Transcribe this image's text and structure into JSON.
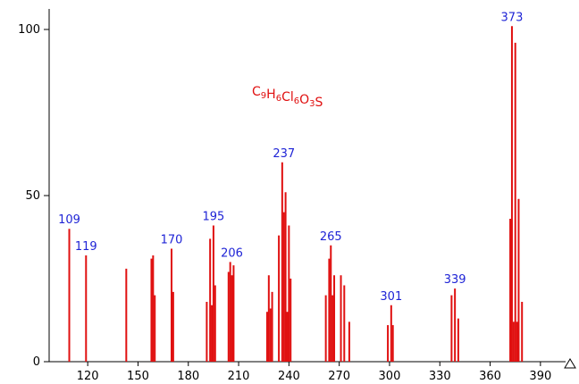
{
  "chart_data": {
    "type": "bar",
    "title": "",
    "annotation": "C9H6Cl6O3S",
    "xlabel": "",
    "ylabel": "",
    "xlim": [
      97,
      405
    ],
    "ylim": [
      0,
      100
    ],
    "x_ticks": [
      120,
      150,
      180,
      210,
      240,
      270,
      300,
      330,
      360,
      390
    ],
    "y_ticks": [
      0,
      50,
      100
    ],
    "grid": false,
    "colors": {
      "bars": "#e01010",
      "labels": "#1f24d6",
      "axes": "#000000"
    },
    "series": [
      {
        "x": [
          109,
          119,
          143,
          158,
          159,
          160,
          170,
          171,
          191,
          193,
          194,
          195,
          196,
          204,
          205,
          206,
          207,
          227,
          228,
          229,
          230,
          234,
          236,
          237,
          238,
          239,
          240,
          241,
          262,
          264,
          265,
          266,
          267,
          271,
          273,
          276,
          299,
          301,
          302,
          337,
          339,
          341,
          372,
          373,
          374,
          375,
          376,
          377,
          379
        ],
        "values": [
          40,
          32,
          28,
          31,
          32,
          20,
          34,
          21,
          18,
          37,
          17,
          41,
          23,
          27,
          30,
          26,
          29,
          15,
          26,
          16,
          21,
          38,
          60,
          45,
          51,
          15,
          41,
          25,
          20,
          31,
          35,
          20,
          26,
          26,
          23,
          12,
          11,
          17,
          11,
          20,
          22,
          13,
          43,
          101,
          12,
          96,
          12,
          49,
          18
        ]
      }
    ],
    "peak_labels": [
      {
        "x": 109,
        "text": "109"
      },
      {
        "x": 119,
        "text": "119"
      },
      {
        "x": 170,
        "text": "170"
      },
      {
        "x": 195,
        "text": "195"
      },
      {
        "x": 206,
        "text": "206"
      },
      {
        "x": 237,
        "text": "237"
      },
      {
        "x": 265,
        "text": "265"
      },
      {
        "x": 301,
        "text": "301"
      },
      {
        "x": 339,
        "text": "339"
      },
      {
        "x": 373,
        "text": "373"
      }
    ]
  }
}
